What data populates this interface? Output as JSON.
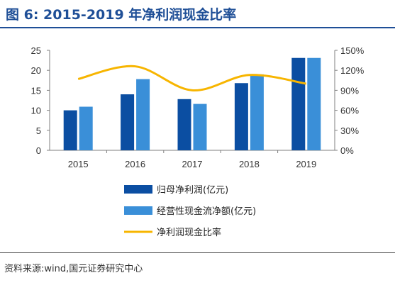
{
  "figure": {
    "title": "图 6:  2015-2019 年净利润现金比率",
    "source": "资料来源:wind,国元证券研究中心"
  },
  "colors": {
    "title": "#1f4f97",
    "net_profit": "#0b4ea2",
    "operating_cf": "#3a8fd8",
    "ratio": "#f7b500"
  },
  "chart_data": {
    "type": "bar",
    "categories": [
      "2015",
      "2016",
      "2017",
      "2018",
      "2019"
    ],
    "series": [
      {
        "name": "归母净利润(亿元)",
        "type": "bar",
        "axis": "left",
        "values": [
          10.0,
          14.0,
          12.8,
          16.8,
          23.1
        ]
      },
      {
        "name": "经营性现金流净额(亿元)",
        "type": "bar",
        "axis": "left",
        "values": [
          10.9,
          17.8,
          11.6,
          19.0,
          23.1
        ]
      },
      {
        "name": "净利润现金比率",
        "type": "line",
        "axis": "right",
        "values": [
          107,
          126,
          90,
          113,
          100
        ]
      }
    ],
    "ylim": [
      0,
      25
    ],
    "y2lim": [
      0,
      150
    ],
    "yticks": [
      "0",
      "5",
      "10",
      "15",
      "20",
      "25"
    ],
    "y2ticks": [
      "0%",
      "30%",
      "60%",
      "90%",
      "120%",
      "150%"
    ],
    "legend_position": "bottom",
    "grid": false
  }
}
